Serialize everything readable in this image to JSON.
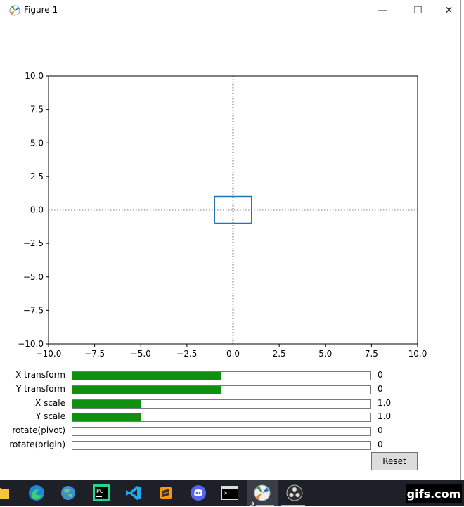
{
  "window": {
    "title": "Figure 1",
    "controls": {
      "minimize": "—",
      "maximize": "☐",
      "close": "✕"
    }
  },
  "chart_data": {
    "type": "line",
    "title": "",
    "xlabel": "",
    "ylabel": "",
    "xlim": [
      -10.0,
      10.0
    ],
    "ylim": [
      -10.0,
      10.0
    ],
    "xticks": [
      -10.0,
      -7.5,
      -5.0,
      -2.5,
      0.0,
      2.5,
      5.0,
      7.5,
      10.0
    ],
    "yticks": [
      -10.0,
      -7.5,
      -5.0,
      -2.5,
      0.0,
      2.5,
      5.0,
      7.5,
      10.0
    ],
    "xtick_labels": [
      "−10.0",
      "−7.5",
      "−5.0",
      "−2.5",
      "0.0",
      "2.5",
      "5.0",
      "7.5",
      "10.0"
    ],
    "ytick_labels": [
      "−10.0",
      "−7.5",
      "−5.0",
      "−2.5",
      "0.0",
      "2.5",
      "5.0",
      "7.5",
      "10.0"
    ],
    "grid": false,
    "reference_lines": [
      {
        "orientation": "horizontal",
        "value": 0.0,
        "style": "dotted",
        "color": "#000000"
      },
      {
        "orientation": "vertical",
        "value": 0.0,
        "style": "dotted",
        "color": "#000000"
      }
    ],
    "series": [
      {
        "x": [
          -1,
          1,
          1,
          -1,
          -1
        ],
        "y": [
          -1,
          -1,
          1,
          1,
          -1
        ],
        "color": "#1f77b4"
      }
    ]
  },
  "sliders": [
    {
      "label": "X transform",
      "value_text": "0",
      "fraction": 0.5,
      "marker": false
    },
    {
      "label": "Y transform",
      "value_text": "0",
      "fraction": 0.5,
      "marker": false
    },
    {
      "label": "X scale",
      "value_text": "1.0",
      "fraction": 0.23,
      "marker": true
    },
    {
      "label": "Y scale",
      "value_text": "1.0",
      "fraction": 0.23,
      "marker": true
    },
    {
      "label": "rotate(pivot)",
      "value_text": "0",
      "fraction": 0.0,
      "marker": false
    },
    {
      "label": "rotate(origin)",
      "value_text": "0",
      "fraction": 0.0,
      "marker": false
    }
  ],
  "reset_label": "Reset",
  "colors": {
    "slider_fill": "#109010",
    "slider_marker": "#cc0000",
    "taskbar": "#1d2127"
  },
  "taskbar": {
    "icons": [
      "folder-icon",
      "edge-icon",
      "browser-icon",
      "pycharm-icon",
      "vscode-icon",
      "sublime-icon",
      "discord-icon",
      "terminal-icon",
      "matplotlib-figure-icon",
      "obs-icon"
    ]
  },
  "watermark": "gifs.com"
}
